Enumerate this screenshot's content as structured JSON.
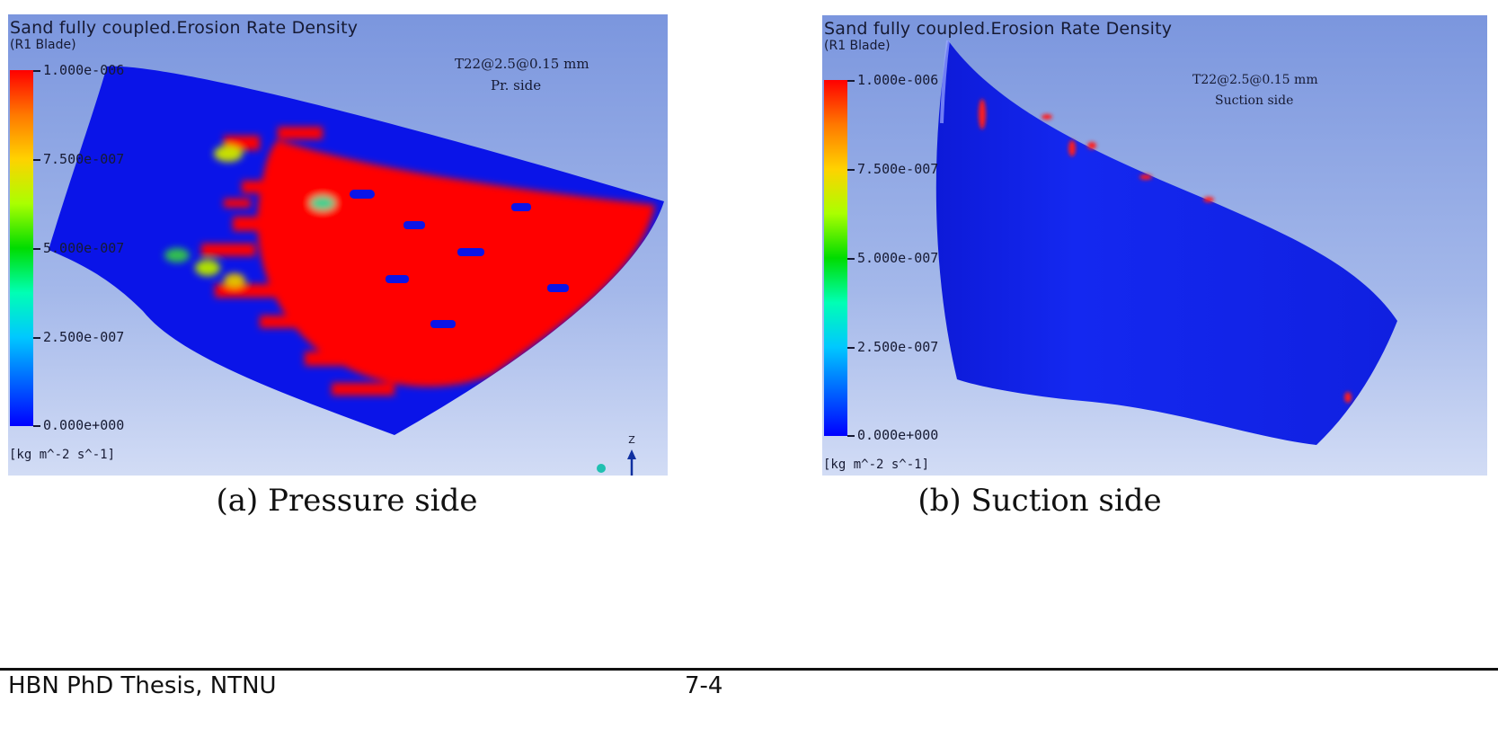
{
  "figure": {
    "panels": [
      {
        "title": "Sand fully coupled.Erosion Rate Density",
        "subtitle": "(R1 Blade)",
        "colorbar_ticks": [
          "1.000e-006",
          "7.500e-007",
          "5.000e-007",
          "2.500e-007",
          "0.000e+000"
        ],
        "units": "[kg m^-2 s^-1]",
        "case_label": "T22@2.5@0.15 mm",
        "side_label": "Pr. side",
        "axis_label": "Z",
        "caption": "(a) Pressure side"
      },
      {
        "title": "Sand fully coupled.Erosion Rate Density",
        "subtitle": "(R1 Blade)",
        "colorbar_ticks": [
          "1.000e-006",
          "7.500e-007",
          "5.000e-007",
          "2.500e-007",
          "0.000e+000"
        ],
        "units": "[kg m^-2 s^-1]",
        "case_label": "T22@2.5@0.15 mm",
        "side_label": "Suction side",
        "caption": "(b) Suction side"
      }
    ],
    "colors": {
      "max": "#ff0000",
      "min": "#0000ff",
      "background_top": "#7b96de",
      "background_bottom": "#d2dcf5"
    }
  },
  "footer": {
    "left": "HBN PhD Thesis, NTNU",
    "page": "7-4"
  }
}
